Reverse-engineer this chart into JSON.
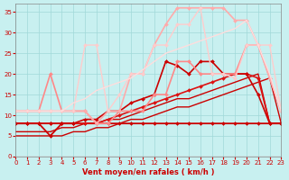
{
  "xlabel": "Vent moyen/en rafales ( km/h )",
  "xlim": [
    0,
    23
  ],
  "ylim": [
    0,
    37
  ],
  "yticks": [
    0,
    5,
    10,
    15,
    20,
    25,
    30,
    35
  ],
  "xticks": [
    0,
    1,
    2,
    3,
    4,
    5,
    6,
    7,
    8,
    9,
    10,
    11,
    12,
    13,
    14,
    15,
    16,
    17,
    18,
    19,
    20,
    21,
    22,
    23
  ],
  "bg_color": "#c8f0f0",
  "grid_color": "#a0d8d8",
  "series": [
    {
      "x": [
        0,
        1,
        2,
        3,
        4,
        5,
        6,
        7,
        8,
        9,
        10,
        11,
        12,
        13,
        14,
        15,
        16,
        17,
        18,
        19,
        20,
        21,
        22,
        23
      ],
      "y": [
        8,
        8,
        8,
        5,
        8,
        8,
        8,
        8,
        8,
        8,
        8,
        8,
        8,
        8,
        8,
        8,
        8,
        8,
        8,
        8,
        8,
        8,
        8,
        8
      ],
      "color": "#cc0000",
      "lw": 1.3,
      "marker": "D",
      "ms": 2.0
    },
    {
      "x": [
        0,
        1,
        2,
        3,
        4,
        5,
        6,
        7,
        8,
        9,
        10,
        11,
        12,
        13,
        14,
        15,
        16,
        17,
        18,
        19,
        20,
        21,
        22,
        23
      ],
      "y": [
        5,
        5,
        5,
        5,
        5,
        6,
        6,
        7,
        7,
        8,
        9,
        9,
        10,
        11,
        12,
        12,
        13,
        14,
        15,
        16,
        17,
        18,
        19,
        8
      ],
      "color": "#cc0000",
      "lw": 1.0,
      "marker": null,
      "ms": 0
    },
    {
      "x": [
        0,
        1,
        2,
        3,
        4,
        5,
        6,
        7,
        8,
        9,
        10,
        11,
        12,
        13,
        14,
        15,
        16,
        17,
        18,
        19,
        20,
        21,
        22,
        23
      ],
      "y": [
        6,
        6,
        6,
        6,
        7,
        7,
        8,
        8,
        9,
        9,
        10,
        11,
        12,
        13,
        14,
        14,
        15,
        16,
        17,
        18,
        19,
        20,
        8,
        8
      ],
      "color": "#cc0000",
      "lw": 1.0,
      "marker": null,
      "ms": 0
    },
    {
      "x": [
        0,
        1,
        2,
        3,
        4,
        5,
        6,
        7,
        8,
        9,
        10,
        11,
        12,
        13,
        14,
        15,
        16,
        17,
        18,
        19,
        20,
        21,
        22,
        23
      ],
      "y": [
        8,
        8,
        8,
        8,
        8,
        8,
        8,
        8,
        9,
        10,
        11,
        12,
        13,
        14,
        15,
        16,
        17,
        18,
        19,
        20,
        20,
        19,
        8,
        8
      ],
      "color": "#dd1111",
      "lw": 1.2,
      "marker": "D",
      "ms": 2.0
    },
    {
      "x": [
        0,
        1,
        2,
        3,
        4,
        5,
        6,
        7,
        8,
        9,
        10,
        11,
        12,
        13,
        14,
        15,
        16,
        17,
        18,
        19,
        20,
        21,
        22,
        23
      ],
      "y": [
        8,
        8,
        8,
        8,
        8,
        8,
        9,
        9,
        11,
        11,
        13,
        14,
        15,
        23,
        22,
        20,
        23,
        23,
        20,
        20,
        20,
        15,
        8,
        8
      ],
      "color": "#cc0000",
      "lw": 1.2,
      "marker": "D",
      "ms": 2.0
    },
    {
      "x": [
        0,
        1,
        2,
        3,
        4,
        5,
        6,
        7,
        8,
        9,
        10,
        11,
        12,
        13,
        14,
        15,
        16,
        17,
        18,
        19,
        20,
        21,
        22,
        23
      ],
      "y": [
        11,
        11,
        11,
        20,
        11,
        11,
        11,
        8,
        8,
        11,
        11,
        11,
        15,
        15,
        23,
        23,
        20,
        20,
        20,
        20,
        27,
        27,
        19,
        11
      ],
      "color": "#ff8888",
      "lw": 1.2,
      "marker": "D",
      "ms": 2.0
    },
    {
      "x": [
        0,
        1,
        2,
        3,
        4,
        5,
        6,
        7,
        8,
        9,
        10,
        11,
        12,
        13,
        14,
        15,
        16,
        17,
        18,
        19,
        20,
        21,
        22,
        23
      ],
      "y": [
        11,
        11,
        11,
        11,
        11,
        11,
        11,
        8,
        11,
        11,
        20,
        20,
        27,
        32,
        36,
        36,
        36,
        36,
        36,
        33,
        33,
        27,
        19,
        11
      ],
      "color": "#ffaaaa",
      "lw": 1.2,
      "marker": "D",
      "ms": 2.0
    },
    {
      "x": [
        0,
        1,
        2,
        3,
        4,
        5,
        6,
        7,
        8,
        9,
        10,
        11,
        12,
        13,
        14,
        15,
        16,
        17,
        18,
        19,
        20,
        21,
        22,
        23
      ],
      "y": [
        11,
        11,
        11,
        11,
        11,
        11,
        27,
        27,
        11,
        15,
        20,
        20,
        27,
        27,
        32,
        32,
        36,
        20,
        20,
        19,
        27,
        27,
        27,
        11
      ],
      "color": "#ffcccc",
      "lw": 1.0,
      "marker": "D",
      "ms": 2.0
    },
    {
      "x": [
        0,
        1,
        2,
        3,
        4,
        5,
        6,
        7,
        8,
        9,
        10,
        11,
        12,
        13,
        14,
        15,
        16,
        17,
        18,
        19,
        20,
        21,
        22,
        23
      ],
      "y": [
        11,
        11,
        11,
        11,
        11,
        13,
        14,
        16,
        17,
        18,
        19,
        21,
        23,
        25,
        26,
        27,
        28,
        29,
        30,
        31,
        33,
        27,
        20,
        11
      ],
      "color": "#ffdddd",
      "lw": 1.0,
      "marker": null,
      "ms": 0
    }
  ]
}
